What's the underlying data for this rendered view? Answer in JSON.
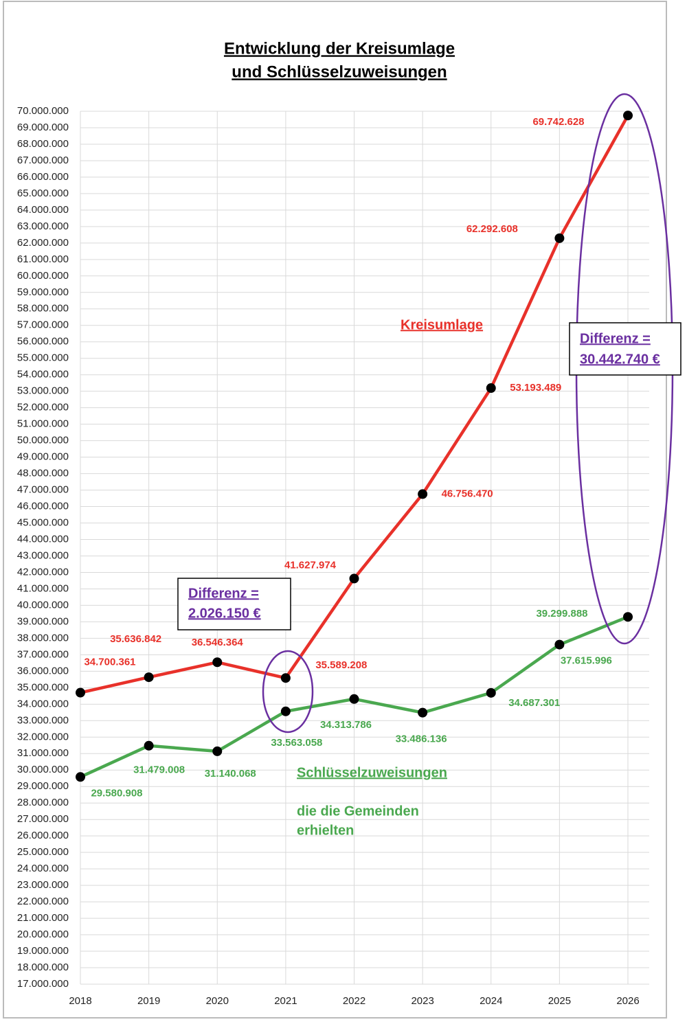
{
  "chart_data": {
    "type": "line",
    "title": [
      "Entwicklung der Kreisumlage",
      "und Schlüsselzuweisungen"
    ],
    "categories": [
      "2018",
      "2019",
      "2020",
      "2021",
      "2022",
      "2023",
      "2024",
      "2025",
      "2026"
    ],
    "series": [
      {
        "name": "Kreisumlage",
        "color": "#e8312a",
        "values": [
          34700361,
          35636842,
          36546364,
          35589208,
          41627974,
          46756470,
          53193489,
          62292608,
          69742628
        ],
        "value_labels": [
          "34.700.361",
          "35.636.842",
          "36.546.364",
          "35.589.208",
          "41.627.974",
          "46.756.470",
          "53.193.489",
          "62.292.608",
          "69.742.628"
        ]
      },
      {
        "name": "Schlüsselzuweisungen",
        "color": "#4aa84f",
        "values": [
          29580908,
          31479008,
          31140068,
          33563058,
          34313786,
          33486136,
          34687301,
          37615996,
          39299888
        ],
        "value_labels": [
          "29.580.908",
          "31.479.008",
          "31.140.068",
          "33.563.058",
          "34.313.786",
          "33.486.136",
          "34.687.301",
          "37.615.996",
          "39.299.888"
        ]
      }
    ],
    "annotations": [
      {
        "text": [
          "Differenz =",
          "2.026.150 €"
        ]
      },
      {
        "text": [
          "Differenz =",
          "30.442.740 €"
        ]
      },
      {
        "text": [
          "die die Gemeinden",
          "erhielten"
        ]
      }
    ],
    "ylim": [
      17000000,
      70000000
    ],
    "yticks": [
      {
        "value": 17000000,
        "label": "17.000.000"
      },
      {
        "value": 18000000,
        "label": "18.000.000"
      },
      {
        "value": 19000000,
        "label": "19.000.000"
      },
      {
        "value": 20000000,
        "label": "20.000.000"
      },
      {
        "value": 21000000,
        "label": "21.000.000"
      },
      {
        "value": 22000000,
        "label": "22.000.000"
      },
      {
        "value": 23000000,
        "label": "23.000.000"
      },
      {
        "value": 24000000,
        "label": "24.000.000"
      },
      {
        "value": 25000000,
        "label": "25.000.000"
      },
      {
        "value": 26000000,
        "label": "26.000.000"
      },
      {
        "value": 27000000,
        "label": "27.000.000"
      },
      {
        "value": 28000000,
        "label": "28.000.000"
      },
      {
        "value": 29000000,
        "label": "29.000.000"
      },
      {
        "value": 30000000,
        "label": "30.000.000"
      },
      {
        "value": 31000000,
        "label": "31.000.000"
      },
      {
        "value": 32000000,
        "label": "32.000.000"
      },
      {
        "value": 33000000,
        "label": "33.000.000"
      },
      {
        "value": 34000000,
        "label": "34.000.000"
      },
      {
        "value": 35000000,
        "label": "35.000.000"
      },
      {
        "value": 36000000,
        "label": "36.000.000"
      },
      {
        "value": 37000000,
        "label": "37.000.000"
      },
      {
        "value": 38000000,
        "label": "38.000.000"
      },
      {
        "value": 39000000,
        "label": "39.000.000"
      },
      {
        "value": 40000000,
        "label": "40.000.000"
      },
      {
        "value": 41000000,
        "label": "41.000.000"
      },
      {
        "value": 42000000,
        "label": "42.000.000"
      },
      {
        "value": 43000000,
        "label": "43.000.000"
      },
      {
        "value": 44000000,
        "label": "44.000.000"
      },
      {
        "value": 45000000,
        "label": "45.000.000"
      },
      {
        "value": 46000000,
        "label": "46.000.000"
      },
      {
        "value": 47000000,
        "label": "47.000.000"
      },
      {
        "value": 48000000,
        "label": "48.000.000"
      },
      {
        "value": 49000000,
        "label": "49.000.000"
      },
      {
        "value": 50000000,
        "label": "50.000.000"
      },
      {
        "value": 51000000,
        "label": "51.000.000"
      },
      {
        "value": 52000000,
        "label": "52.000.000"
      },
      {
        "value": 53000000,
        "label": "53.000.000"
      },
      {
        "value": 54000000,
        "label": "54.000.000"
      },
      {
        "value": 55000000,
        "label": "55.000.000"
      },
      {
        "value": 56000000,
        "label": "56.000.000"
      },
      {
        "value": 57000000,
        "label": "57.000.000"
      },
      {
        "value": 58000000,
        "label": "58.000.000"
      },
      {
        "value": 59000000,
        "label": "59.000.000"
      },
      {
        "value": 60000000,
        "label": "60.000.000"
      },
      {
        "value": 61000000,
        "label": "61.000.000"
      },
      {
        "value": 62000000,
        "label": "62.000.000"
      },
      {
        "value": 63000000,
        "label": "63.000.000"
      },
      {
        "value": 64000000,
        "label": "64.000.000"
      },
      {
        "value": 65000000,
        "label": "65.000.000"
      },
      {
        "value": 66000000,
        "label": "66.000.000"
      },
      {
        "value": 67000000,
        "label": "67.000.000"
      },
      {
        "value": 68000000,
        "label": "68.000.000"
      },
      {
        "value": 69000000,
        "label": "69.000.000"
      },
      {
        "value": 70000000,
        "label": "70.000.000"
      }
    ],
    "grid": true
  }
}
